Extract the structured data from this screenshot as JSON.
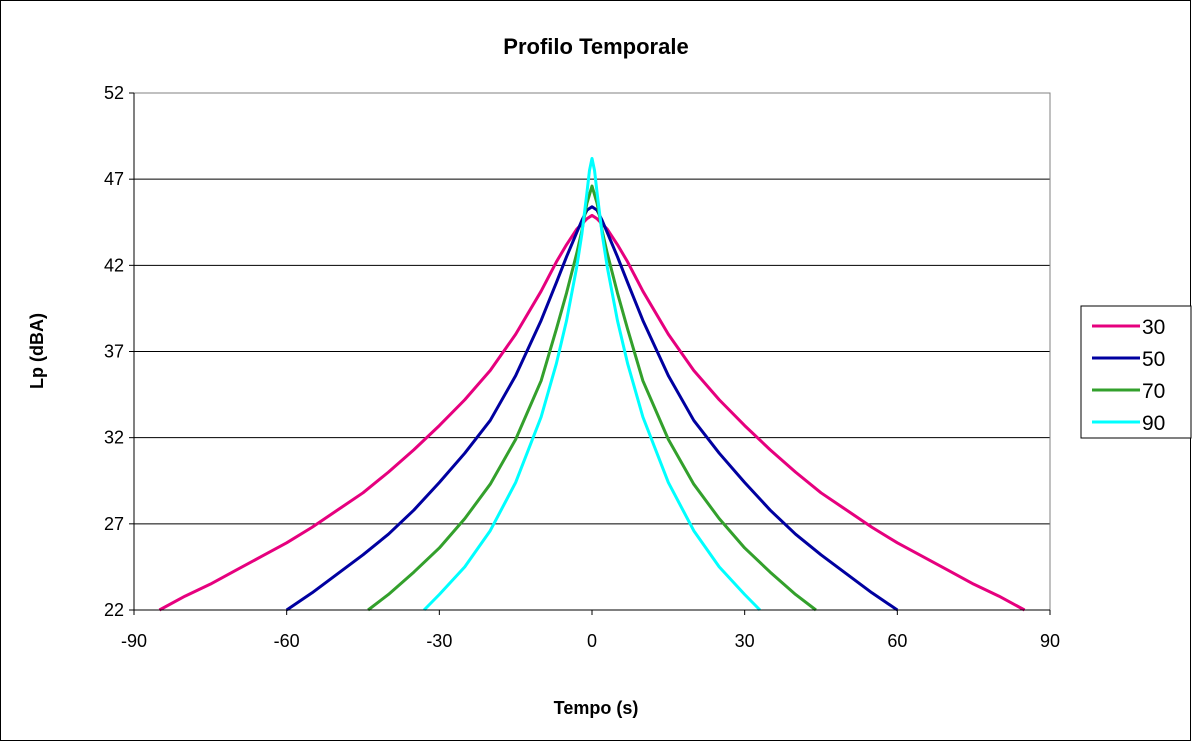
{
  "chart_data": {
    "type": "line",
    "title": "Profilo Temporale",
    "xlabel": "Tempo (s)",
    "ylabel": "Lp (dBA)",
    "xlim": [
      -90,
      90
    ],
    "ylim": [
      22,
      52
    ],
    "xticks": [
      -90,
      -60,
      -30,
      0,
      30,
      60,
      90
    ],
    "yticks": [
      22,
      27,
      32,
      37,
      42,
      47,
      52
    ],
    "grid": "horizontal",
    "legend": "right",
    "series": [
      {
        "name": "30",
        "color": "#E6007E",
        "x": [
          -85,
          -80,
          -75,
          -70,
          -65,
          -60,
          -55,
          -50,
          -45,
          -40,
          -35,
          -30,
          -25,
          -20,
          -15,
          -10,
          -7,
          -5,
          -3,
          -1,
          0,
          1,
          3,
          5,
          7,
          10,
          15,
          20,
          25,
          30,
          35,
          40,
          45,
          50,
          55,
          60,
          65,
          70,
          75,
          80,
          85
        ],
        "y": [
          22.0,
          22.8,
          23.5,
          24.3,
          25.1,
          25.9,
          26.8,
          27.8,
          28.8,
          30.0,
          31.3,
          32.7,
          34.2,
          35.9,
          38.0,
          40.5,
          42.2,
          43.2,
          44.1,
          44.7,
          44.9,
          44.7,
          44.1,
          43.2,
          42.2,
          40.5,
          38.0,
          35.9,
          34.2,
          32.7,
          31.3,
          30.0,
          28.8,
          27.8,
          26.8,
          25.9,
          25.1,
          24.3,
          23.5,
          22.8,
          22.0
        ]
      },
      {
        "name": "50",
        "color": "#0000A0",
        "x": [
          -60,
          -55,
          -50,
          -45,
          -40,
          -35,
          -30,
          -25,
          -20,
          -15,
          -10,
          -7,
          -5,
          -3,
          -2,
          -1,
          0,
          1,
          2,
          3,
          5,
          7,
          10,
          15,
          20,
          25,
          30,
          35,
          40,
          45,
          50,
          55,
          60
        ],
        "y": [
          22.0,
          23.0,
          24.1,
          25.2,
          26.4,
          27.8,
          29.4,
          31.1,
          33.0,
          35.6,
          38.8,
          41.0,
          42.5,
          43.9,
          44.6,
          45.2,
          45.4,
          45.2,
          44.6,
          43.9,
          42.5,
          41.0,
          38.8,
          35.6,
          33.0,
          31.1,
          29.4,
          27.8,
          26.4,
          25.2,
          24.1,
          23.0,
          22.0
        ]
      },
      {
        "name": "70",
        "color": "#33A02C",
        "x": [
          -44,
          -40,
          -35,
          -30,
          -25,
          -20,
          -15,
          -10,
          -7,
          -5,
          -3,
          -2,
          -1,
          0,
          1,
          2,
          3,
          5,
          7,
          10,
          15,
          20,
          25,
          30,
          35,
          40,
          44
        ],
        "y": [
          22.0,
          22.9,
          24.2,
          25.6,
          27.3,
          29.3,
          31.9,
          35.3,
          38.3,
          40.4,
          42.7,
          44.0,
          45.6,
          46.6,
          45.6,
          44.0,
          42.7,
          40.4,
          38.3,
          35.3,
          31.9,
          29.3,
          27.3,
          25.6,
          24.2,
          22.9,
          22.0
        ]
      },
      {
        "name": "90",
        "color": "#00FFFF",
        "x": [
          -33,
          -30,
          -25,
          -20,
          -15,
          -10,
          -7,
          -5,
          -3,
          -2,
          -1,
          -0.5,
          0,
          0.5,
          1,
          2,
          3,
          5,
          7,
          10,
          15,
          20,
          25,
          30,
          33
        ],
        "y": [
          22.0,
          22.9,
          24.5,
          26.6,
          29.4,
          33.2,
          36.3,
          38.8,
          41.9,
          43.8,
          46.2,
          47.5,
          48.2,
          47.5,
          46.2,
          43.8,
          41.9,
          38.8,
          36.3,
          33.2,
          29.4,
          26.6,
          24.5,
          22.9,
          22.0
        ]
      }
    ]
  }
}
